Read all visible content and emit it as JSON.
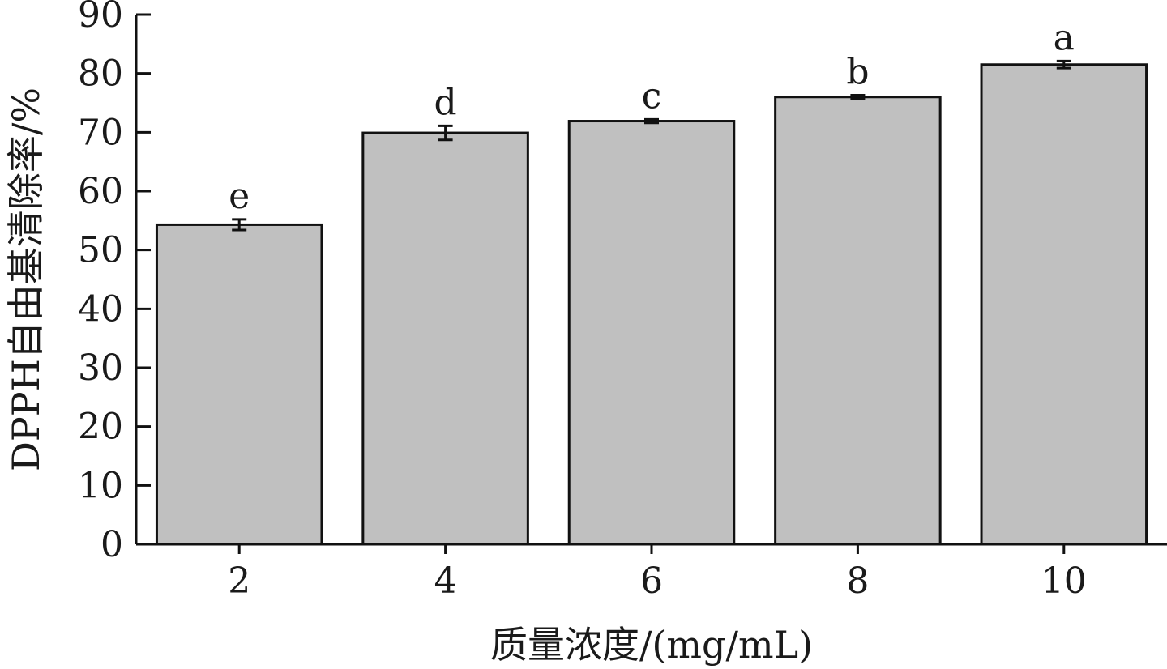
{
  "chart_data": {
    "type": "bar",
    "categories": [
      "2",
      "4",
      "6",
      "8",
      "10"
    ],
    "values": [
      54.3,
      69.9,
      71.9,
      76.0,
      81.5
    ],
    "error": [
      0.9,
      1.2,
      0.3,
      0.3,
      0.6
    ],
    "significance": [
      "e",
      "d",
      "c",
      "b",
      "a"
    ],
    "xlabel": "质量浓度/(mg/mL)",
    "ylabel": "DPPH自由基清除率/%",
    "ylim": [
      0,
      90
    ],
    "yticks": [
      "0",
      "10",
      "20",
      "30",
      "40",
      "50",
      "60",
      "70",
      "80",
      "90"
    ],
    "grid": false,
    "bar_color": "#c0c0c0",
    "edge_color": "#111111"
  }
}
